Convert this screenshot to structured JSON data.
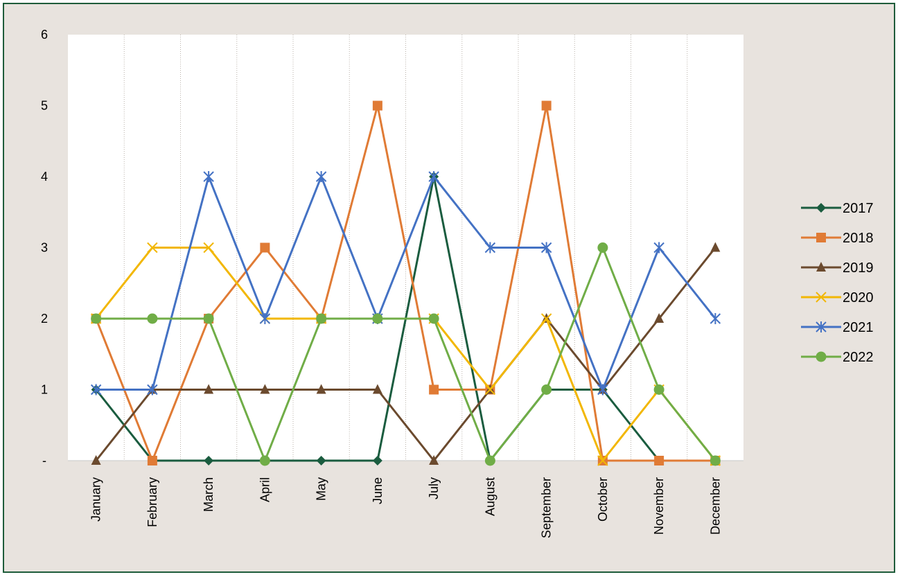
{
  "chart_data": {
    "type": "line",
    "title": "",
    "xlabel": "",
    "ylabel": "",
    "categories": [
      "January",
      "February",
      "March",
      "April",
      "May",
      "June",
      "July",
      "August",
      "September",
      "October",
      "November",
      "December"
    ],
    "ylim": [
      0,
      6
    ],
    "yticks": [
      {
        "value": 0,
        "label": "-"
      },
      {
        "value": 1,
        "label": "1"
      },
      {
        "value": 2,
        "label": "2"
      },
      {
        "value": 3,
        "label": "3"
      },
      {
        "value": 4,
        "label": "4"
      },
      {
        "value": 5,
        "label": "5"
      },
      {
        "value": 6,
        "label": "6"
      }
    ],
    "grid": "vertical-dotted",
    "legend_position": "right",
    "series": [
      {
        "name": "2017",
        "color": "#1a5c3f",
        "marker": "diamond",
        "values": [
          1,
          0,
          0,
          0,
          0,
          0,
          4,
          0,
          1,
          1,
          0,
          0
        ]
      },
      {
        "name": "2018",
        "color": "#e07b35",
        "marker": "square",
        "values": [
          2,
          0,
          2,
          3,
          2,
          5,
          1,
          1,
          5,
          0,
          0,
          0
        ]
      },
      {
        "name": "2019",
        "color": "#6b4a2e",
        "marker": "triangle",
        "values": [
          0,
          1,
          1,
          1,
          1,
          1,
          0,
          1,
          2,
          1,
          2,
          3
        ]
      },
      {
        "name": "2020",
        "color": "#f2b705",
        "marker": "x",
        "values": [
          2,
          3,
          3,
          2,
          2,
          2,
          2,
          1,
          2,
          0,
          1,
          0
        ]
      },
      {
        "name": "2021",
        "color": "#4472c4",
        "marker": "star",
        "values": [
          1,
          1,
          4,
          2,
          4,
          2,
          4,
          3,
          3,
          1,
          3,
          2
        ]
      },
      {
        "name": "2022",
        "color": "#70ad47",
        "marker": "circle",
        "values": [
          2,
          2,
          2,
          0,
          2,
          2,
          2,
          0,
          1,
          3,
          1,
          0
        ]
      }
    ]
  }
}
